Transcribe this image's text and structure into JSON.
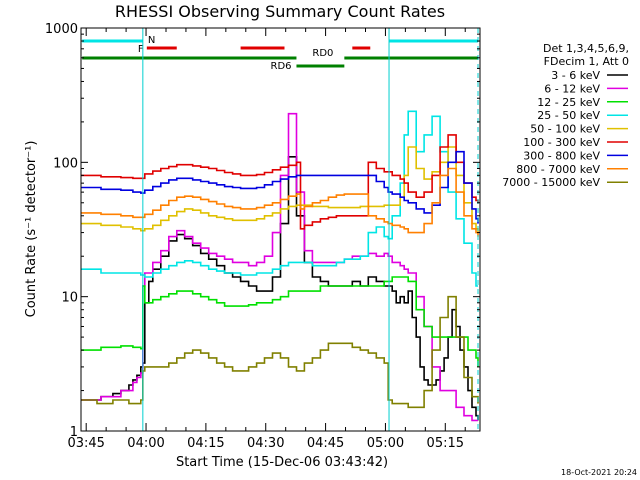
{
  "chart_data": {
    "type": "line",
    "title": "RHESSI Observing Summary Count Rates",
    "xlabel": "Start Time (15-Dec-06 03:43:42)",
    "ylabel": "Count Rate (s⁻¹ detector⁻¹)",
    "y_scale": "log",
    "ylim": [
      1,
      1000
    ],
    "xlim_minutes": [
      0,
      100
    ],
    "x_ticks": [
      {
        "t": 1.3,
        "label": "03:45"
      },
      {
        "t": 16.3,
        "label": "04:00"
      },
      {
        "t": 31.3,
        "label": "04:15"
      },
      {
        "t": 46.3,
        "label": "04:30"
      },
      {
        "t": 61.3,
        "label": "04:45"
      },
      {
        "t": 76.3,
        "label": "05:00"
      },
      {
        "t": 91.3,
        "label": "05:15"
      }
    ],
    "y_ticks": [
      {
        "v": 1,
        "label": "1"
      },
      {
        "v": 10,
        "label": "10"
      },
      {
        "v": 100,
        "label": "100"
      },
      {
        "v": 1000,
        "label": "1000"
      }
    ],
    "grid": false,
    "legend_position": "right",
    "legend_header": [
      "Det 1,3,4,5,6,9,",
      "FDecim 1, Att 0"
    ],
    "timestamp": "18-Oct-2021 20:24",
    "night_boundaries_min": [
      15.5,
      77.2
    ],
    "day_boundary_min": [
      0,
      99.5
    ],
    "flag_bars": [
      {
        "label": "N",
        "color": "#00e5e5",
        "segments": [
          [
            0.3,
            15.5
          ],
          [
            77.3,
            99.5
          ]
        ]
      },
      {
        "label": "F",
        "color": "#e00000",
        "segments": [
          [
            16.5,
            24.0
          ],
          [
            40.0,
            51.0
          ],
          [
            68.0,
            72.5
          ]
        ]
      },
      {
        "label": "RD0",
        "color": "#008000",
        "segments": [
          [
            0.3,
            54.0
          ],
          [
            66.0,
            99.5
          ]
        ]
      },
      {
        "label": "RD6",
        "color": "#008000",
        "segments": [
          [
            54.0,
            66.0
          ]
        ]
      }
    ],
    "series": [
      {
        "name": "3 - 6 keV",
        "color": "#000000",
        "x": [
          0,
          2,
          5,
          8,
          10,
          12,
          13,
          14,
          15,
          15.5,
          16,
          17,
          18,
          20,
          22,
          24,
          26,
          28,
          30,
          32,
          34,
          36,
          38,
          40,
          42,
          44,
          46,
          48,
          50,
          52,
          54,
          56,
          58,
          60,
          62,
          64,
          66,
          68,
          70,
          72,
          74,
          76,
          77,
          78,
          79,
          80,
          81,
          82,
          83,
          84,
          85,
          86,
          87,
          88,
          89,
          90,
          91,
          92,
          93,
          94,
          95,
          96,
          97,
          98,
          99,
          99.5
        ],
        "y": [
          1.7,
          1.7,
          1.8,
          1.9,
          2.0,
          2.2,
          2.4,
          2.6,
          3.0,
          3.2,
          9,
          13,
          16,
          20,
          26,
          29,
          27,
          24,
          21,
          19,
          17,
          15,
          14,
          13,
          12,
          11,
          11,
          14,
          35,
          110,
          40,
          18,
          14,
          13,
          12,
          12,
          12,
          13,
          12,
          14,
          13,
          12,
          12,
          11,
          9,
          10,
          9,
          11,
          7,
          5,
          3,
          2.4,
          2.2,
          2.2,
          2.4,
          2.8,
          3.5,
          5,
          8,
          6,
          4,
          3,
          2,
          1.5,
          1.3,
          1.2
        ]
      },
      {
        "name": "6 - 12 keV",
        "color": "#e000e0",
        "x": [
          0,
          5,
          10,
          13,
          14,
          15,
          15.5,
          16,
          18,
          20,
          22,
          24,
          26,
          28,
          30,
          32,
          34,
          36,
          38,
          40,
          42,
          44,
          46,
          48,
          50,
          52,
          54,
          56,
          58,
          60,
          62,
          64,
          66,
          68,
          70,
          72,
          74,
          76,
          77,
          78,
          80,
          81,
          82,
          84,
          86,
          88,
          90,
          92,
          94,
          96,
          98,
          99.5
        ],
        "y": [
          1.7,
          1.8,
          2.0,
          2.3,
          2.5,
          2.7,
          12,
          15,
          18,
          22,
          28,
          31,
          28,
          25,
          23,
          21,
          20,
          19,
          18,
          18,
          17,
          18,
          20,
          30,
          80,
          230,
          60,
          22,
          18,
          18,
          18,
          18,
          19,
          20,
          20,
          21,
          20,
          21,
          20,
          18,
          17,
          16,
          15,
          10,
          6,
          3,
          2,
          2,
          1.5,
          1.3,
          1.2,
          1.2
        ]
      },
      {
        "name": "12 - 25 keV",
        "color": "#00e000",
        "x": [
          0,
          5,
          10,
          13,
          15,
          15.5,
          16,
          18,
          20,
          22,
          24,
          26,
          28,
          30,
          32,
          34,
          36,
          38,
          40,
          42,
          44,
          46,
          48,
          50,
          52,
          54,
          56,
          58,
          60,
          62,
          64,
          66,
          68,
          70,
          72,
          74,
          76,
          77,
          78,
          80,
          81,
          82,
          84,
          86,
          88,
          90,
          92,
          94,
          95,
          96,
          97,
          98,
          99,
          99.5
        ],
        "y": [
          4,
          4.2,
          4.3,
          4.2,
          4.1,
          12,
          9,
          9.5,
          10,
          10.5,
          11,
          11,
          10.5,
          10,
          9.5,
          9,
          8.5,
          8.5,
          8.5,
          8.7,
          9,
          9,
          9.5,
          10,
          11,
          11,
          11,
          11,
          12,
          12,
          12,
          12,
          12,
          12,
          12,
          12,
          13,
          13,
          14,
          14,
          14,
          13,
          8,
          6,
          5,
          5,
          5,
          5,
          5,
          5,
          4,
          4,
          3.5,
          3
        ]
      },
      {
        "name": "25 - 50 keV",
        "color": "#00e5e5",
        "x": [
          0,
          5,
          10,
          13,
          15,
          15.5,
          16,
          18,
          20,
          22,
          24,
          26,
          28,
          30,
          32,
          34,
          36,
          38,
          40,
          42,
          44,
          46,
          48,
          50,
          52,
          54,
          56,
          58,
          60,
          62,
          64,
          66,
          68,
          70,
          72,
          74,
          76,
          77,
          78,
          80,
          81,
          82,
          84,
          86,
          88,
          90,
          92,
          94,
          96,
          98,
          99,
          99.5
        ],
        "y": [
          16,
          15,
          15,
          15,
          14.5,
          14.5,
          14,
          15,
          16,
          17,
          18,
          18.5,
          18,
          17,
          16,
          15.5,
          15,
          15,
          14.5,
          14.5,
          15,
          15,
          16,
          17,
          18,
          18,
          18,
          17,
          17,
          17,
          18,
          19,
          19,
          20,
          30,
          33,
          28,
          27,
          40,
          70,
          160,
          240,
          120,
          160,
          220,
          120,
          60,
          38,
          25,
          15,
          12,
          12
        ]
      },
      {
        "name": "50 - 100 keV",
        "color": "#e0c000",
        "x": [
          0,
          5,
          10,
          13,
          15,
          15.5,
          16,
          18,
          20,
          22,
          24,
          26,
          28,
          30,
          32,
          34,
          36,
          38,
          40,
          42,
          44,
          46,
          48,
          50,
          52,
          54,
          56,
          58,
          60,
          62,
          64,
          66,
          68,
          70,
          72,
          74,
          76,
          77,
          78,
          80,
          81,
          82,
          84,
          86,
          88,
          90,
          92,
          94,
          96,
          98,
          99,
          99.5
        ],
        "y": [
          35,
          34,
          33,
          32,
          31,
          31,
          32,
          34,
          37,
          40,
          43,
          45,
          44,
          42,
          40,
          39,
          38,
          37,
          37,
          37,
          38,
          40,
          42,
          45,
          47,
          48,
          48,
          47,
          47,
          46,
          46,
          46,
          46,
          47,
          47,
          47,
          48,
          48,
          48,
          55,
          80,
          130,
          90,
          75,
          85,
          100,
          130,
          80,
          50,
          35,
          32,
          30
        ]
      },
      {
        "name": "100 - 300 keV",
        "color": "#e00000",
        "x": [
          0,
          5,
          10,
          13,
          15,
          15.5,
          16,
          18,
          20,
          22,
          24,
          26,
          28,
          30,
          32,
          34,
          36,
          38,
          40,
          42,
          44,
          46,
          48,
          50,
          52,
          54,
          55,
          56,
          58,
          60,
          62,
          64,
          66,
          68,
          70,
          72,
          74,
          76,
          77,
          78,
          80,
          81,
          82,
          84,
          86,
          88,
          90,
          92,
          94,
          96,
          98,
          99,
          99.5
        ],
        "y": [
          80,
          78,
          77,
          76,
          76,
          76,
          82,
          86,
          90,
          93,
          96,
          96,
          94,
          92,
          90,
          87,
          84,
          82,
          80,
          80,
          81,
          84,
          88,
          92,
          95,
          100,
          32,
          34,
          36,
          38,
          39,
          40,
          40,
          40,
          40,
          100,
          90,
          85,
          85,
          80,
          75,
          70,
          60,
          55,
          60,
          80,
          130,
          160,
          100,
          70,
          55,
          52,
          50
        ]
      },
      {
        "name": "300 - 800 keV",
        "color": "#0000e0",
        "x": [
          0,
          5,
          10,
          13,
          15,
          15.5,
          16,
          18,
          20,
          22,
          24,
          26,
          28,
          30,
          32,
          34,
          36,
          38,
          40,
          42,
          44,
          46,
          48,
          50,
          52,
          54,
          56,
          58,
          60,
          62,
          64,
          66,
          68,
          70,
          72,
          74,
          76,
          77,
          78,
          80,
          81,
          82,
          84,
          86,
          88,
          90,
          92,
          94,
          96,
          98,
          99,
          99.5
        ],
        "y": [
          65,
          63,
          62,
          60,
          59,
          59,
          62,
          66,
          70,
          74,
          76,
          76,
          74,
          72,
          70,
          68,
          66,
          65,
          64,
          64,
          65,
          68,
          72,
          75,
          78,
          80,
          80,
          80,
          80,
          80,
          80,
          80,
          80,
          80,
          80,
          72,
          65,
          60,
          58,
          55,
          52,
          50,
          45,
          42,
          48,
          65,
          100,
          120,
          70,
          45,
          38,
          35
        ]
      },
      {
        "name": "800 - 7000 keV",
        "color": "#ff8000",
        "x": [
          0,
          5,
          10,
          13,
          15,
          15.5,
          16,
          18,
          20,
          22,
          24,
          26,
          28,
          30,
          32,
          34,
          36,
          38,
          40,
          42,
          44,
          46,
          48,
          50,
          52,
          54,
          55,
          56,
          58,
          60,
          62,
          64,
          66,
          68,
          70,
          72,
          74,
          76,
          77,
          78,
          80,
          81,
          82,
          84,
          86,
          88,
          90,
          92,
          94,
          96,
          98,
          99,
          99.5
        ],
        "y": [
          42,
          41,
          40,
          39,
          39,
          39,
          41,
          44,
          48,
          52,
          55,
          56,
          55,
          53,
          51,
          49,
          47,
          46,
          45,
          45,
          46,
          48,
          50,
          53,
          56,
          58,
          45,
          47,
          50,
          52,
          55,
          57,
          58,
          58,
          58,
          40,
          38,
          36,
          35,
          34,
          33,
          32,
          30,
          30,
          35,
          50,
          80,
          90,
          60,
          40,
          32,
          30,
          28
        ]
      },
      {
        "name": "7000 - 15000 keV",
        "color": "#808000",
        "x": [
          0,
          4,
          8,
          12,
          15,
          15.5,
          16,
          18,
          20,
          22,
          24,
          26,
          28,
          30,
          32,
          34,
          36,
          38,
          40,
          42,
          44,
          46,
          48,
          50,
          52,
          54,
          56,
          58,
          60,
          62,
          64,
          66,
          68,
          70,
          72,
          74,
          76,
          77,
          78,
          80,
          82,
          84,
          86,
          88,
          90,
          92,
          94,
          96,
          98,
          99.5
        ],
        "y": [
          1.7,
          1.6,
          1.7,
          1.6,
          1.7,
          2.8,
          3,
          3,
          3,
          3.2,
          3.5,
          3.8,
          4,
          3.8,
          3.5,
          3.2,
          3,
          2.8,
          2.8,
          3,
          3.2,
          3.5,
          3.8,
          3.5,
          3,
          2.8,
          3.2,
          3.5,
          4,
          4.5,
          4.5,
          4.5,
          4.2,
          4,
          3.8,
          3.5,
          3.2,
          1.7,
          1.6,
          1.6,
          1.5,
          1.5,
          2,
          4,
          7,
          10,
          5,
          2.5,
          1.8,
          1.6
        ]
      }
    ]
  }
}
